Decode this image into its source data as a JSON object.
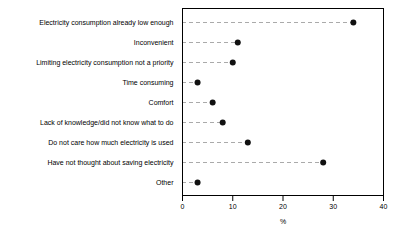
{
  "chart_data": {
    "type": "lollipop",
    "orientation": "horizontal",
    "categories": [
      "Electricity consumption already low enough",
      "Inconvenient",
      "Limiting electricity consumption not a priority",
      "Time consuming",
      "Comfort",
      "Lack of knowledge/did not know what to do",
      "Do not care how much electricity is used",
      "Have not thought about saving electricity",
      "Other"
    ],
    "values": [
      34,
      11,
      10,
      3,
      6,
      8,
      13,
      28,
      3
    ],
    "color": "#111111",
    "xlabel": "%",
    "xlim": [
      0,
      40
    ],
    "xticks": [
      0,
      10,
      20,
      30,
      40
    ]
  }
}
